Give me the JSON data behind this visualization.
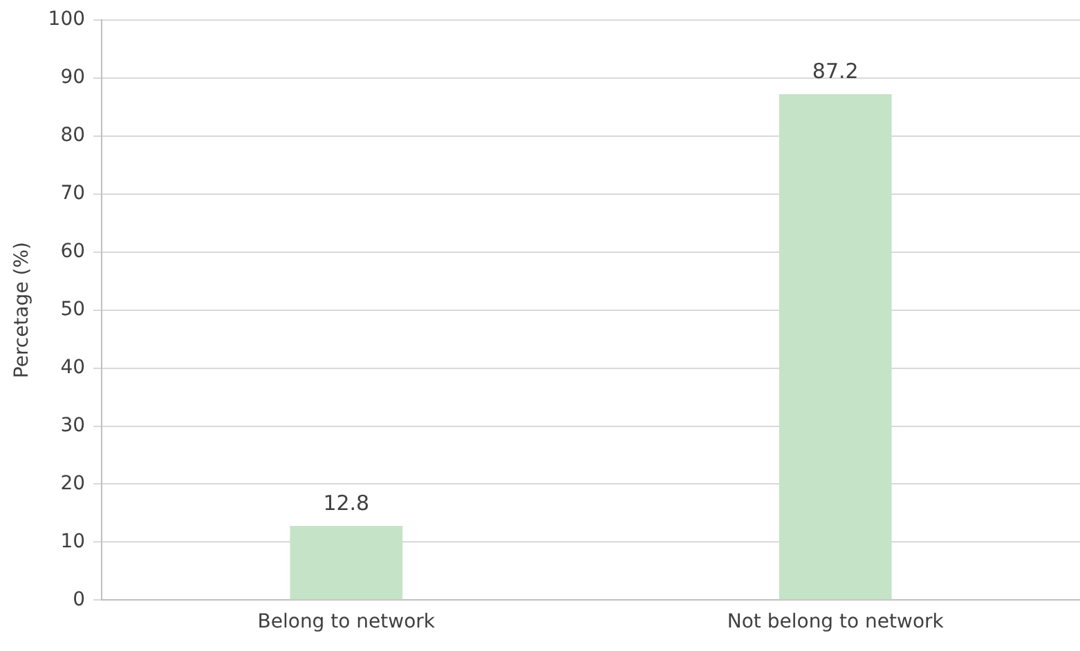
{
  "chart_data": {
    "type": "bar",
    "ylabel": "Percetage (%)",
    "categories": [
      "Belong to network",
      "Not belong to network"
    ],
    "values": [
      12.8,
      87.2
    ],
    "color": "#c5e3c6",
    "ylim": [
      0,
      100
    ],
    "yticks": [
      0,
      10,
      20,
      30,
      40,
      50,
      60,
      70,
      80,
      90,
      100
    ],
    "grid": "y",
    "data_labels": true
  }
}
